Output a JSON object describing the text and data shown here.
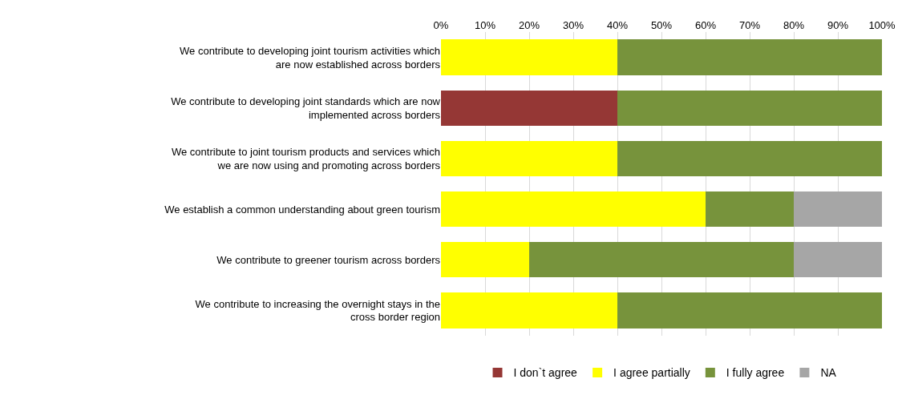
{
  "chart_data": {
    "type": "bar",
    "orientation": "horizontal",
    "stacked": true,
    "categories": [
      "We contribute to developing joint tourism activities which are now established across borders",
      "We contribute to developing joint standards which are now implemented across borders",
      "We contribute to joint tourism products and services which we are now using and promoting across borders",
      "We establish a common understanding about green tourism",
      "We contribute to greener tourism across borders",
      "We contribute to increasing the overnight stays in the cross border region"
    ],
    "series": [
      {
        "name": "I don`t agree",
        "color": "#953735",
        "values": [
          0,
          40,
          0,
          0,
          0,
          0
        ]
      },
      {
        "name": "I agree partially",
        "color": "#ffff00",
        "values": [
          40,
          0,
          40,
          60,
          20,
          40
        ]
      },
      {
        "name": "I fully agree",
        "color": "#77933c",
        "values": [
          60,
          60,
          60,
          20,
          60,
          60
        ]
      },
      {
        "name": "NA",
        "color": "#a6a6a6",
        "values": [
          0,
          0,
          0,
          20,
          20,
          0
        ]
      }
    ],
    "xlim": [
      0,
      100
    ],
    "xticks": [
      {
        "value": 0,
        "label": "0%"
      },
      {
        "value": 10,
        "label": "10%"
      },
      {
        "value": 20,
        "label": "20%"
      },
      {
        "value": 30,
        "label": "30%"
      },
      {
        "value": 40,
        "label": "40%"
      },
      {
        "value": 50,
        "label": "50%"
      },
      {
        "value": 60,
        "label": "60%"
      },
      {
        "value": 70,
        "label": "70%"
      },
      {
        "value": 80,
        "label": "80%"
      },
      {
        "value": 90,
        "label": "90%"
      },
      {
        "value": 100,
        "label": "100%"
      }
    ],
    "grid": "x",
    "legend": "bottom"
  }
}
